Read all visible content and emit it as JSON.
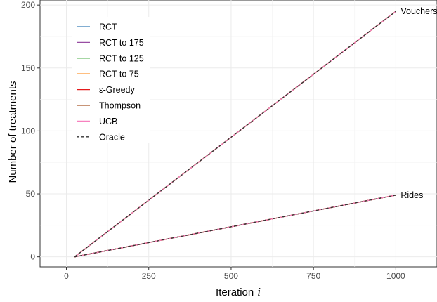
{
  "chart_data": {
    "type": "line",
    "xlabel_prefix": "Iteration",
    "xlabel_var": "i",
    "ylabel": "Number of treatments",
    "xlim": [
      -80,
      1125
    ],
    "ylim": [
      -8,
      204
    ],
    "x_ticks": [
      0,
      250,
      500,
      750,
      1000
    ],
    "y_ticks": [
      0,
      50,
      100,
      150,
      200
    ],
    "grid": true,
    "legend_position": "top-left",
    "legend": [
      {
        "name": "RCT",
        "color": "#377EB8"
      },
      {
        "name": "RCT to 175",
        "color": "#984EA3"
      },
      {
        "name": "RCT to 125",
        "color": "#4DAF4A"
      },
      {
        "name": "RCT to 75",
        "color": "#FF7F00"
      },
      {
        "name": "ε-Greedy",
        "color": "#E41A1C"
      },
      {
        "name": "Thompson",
        "color": "#A65628"
      },
      {
        "name": "UCB",
        "color": "#F781BF"
      },
      {
        "name": "Oracle",
        "color": "#333333",
        "dashed": true
      }
    ],
    "groups": [
      {
        "label": "Vouchers",
        "x": [
          25,
          1000
        ],
        "y": [
          0,
          195
        ]
      },
      {
        "label": "Rides",
        "x": [
          25,
          1000
        ],
        "y": [
          0,
          49
        ]
      }
    ]
  }
}
